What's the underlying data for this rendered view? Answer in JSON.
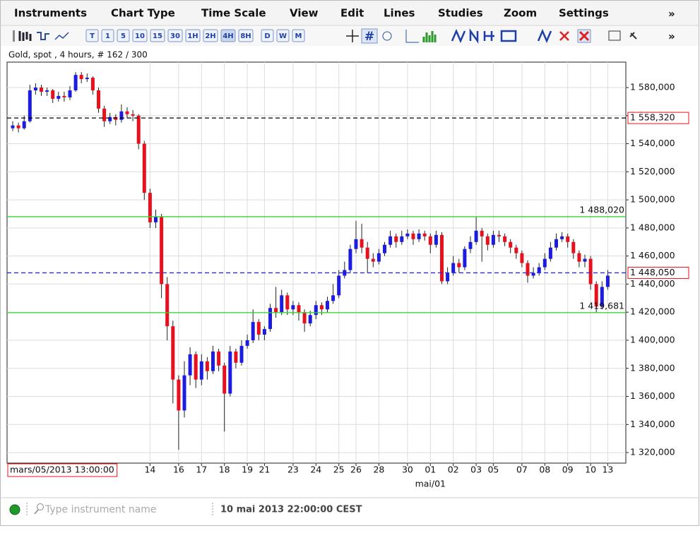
{
  "menu": {
    "items": [
      "Instruments",
      "Chart Type",
      "Time Scale",
      "View",
      "Edit",
      "Lines",
      "Studies",
      "Zoom",
      "Settings"
    ],
    "overflow": "»"
  },
  "toolbar": {
    "periods": [
      "T",
      "1",
      "5",
      "10",
      "15",
      "30",
      "1H",
      "2H",
      "4H",
      "8H",
      "D",
      "W",
      "M"
    ],
    "overflow": "»"
  },
  "chart_data": {
    "type": "candlestick",
    "title": "Gold, spot , 4 hours, # 162 / 300",
    "categories": [
      "mars/05/2013 13:00:00",
      null,
      null,
      null,
      null,
      null,
      null,
      null,
      null,
      null,
      null,
      null,
      null,
      null,
      null,
      null,
      null,
      null,
      null,
      null,
      null,
      null,
      null,
      null,
      "14",
      null,
      null,
      null,
      null,
      "16",
      null,
      null,
      null,
      "17",
      null,
      null,
      null,
      "18",
      null,
      null,
      null,
      "19",
      null,
      null,
      "21",
      null,
      null,
      null,
      null,
      "23",
      null,
      null,
      null,
      "24",
      null,
      null,
      null,
      "25",
      null,
      null,
      "26",
      null,
      null,
      null,
      "28",
      null,
      null,
      null,
      null,
      "30",
      null,
      null,
      null,
      "01",
      null,
      null,
      null,
      "02",
      null,
      null,
      null,
      "03",
      null,
      null,
      "05",
      null,
      null,
      null,
      null,
      "07",
      null,
      null,
      null,
      "08",
      null,
      null,
      null,
      "09",
      null,
      null,
      null,
      "10",
      null,
      null,
      "13"
    ],
    "x_sublabel": "mai/01",
    "candles": [
      [
        1551,
        1556,
        1549,
        1553
      ],
      [
        1553,
        1555,
        1548,
        1551
      ],
      [
        1551,
        1560,
        1550,
        1556
      ],
      [
        1556,
        1582,
        1555,
        1578
      ],
      [
        1578,
        1583,
        1575,
        1580
      ],
      [
        1580,
        1582,
        1574,
        1577
      ],
      [
        1577,
        1580,
        1574,
        1578
      ],
      [
        1578,
        1579,
        1569,
        1572
      ],
      [
        1572,
        1577,
        1570,
        1574
      ],
      [
        1574,
        1577,
        1570,
        1573
      ],
      [
        1573,
        1581,
        1571,
        1578
      ],
      [
        1578,
        1591,
        1577,
        1589
      ],
      [
        1589,
        1591,
        1583,
        1586
      ],
      [
        1586,
        1590,
        1584,
        1587
      ],
      [
        1587,
        1588,
        1575,
        1578
      ],
      [
        1578,
        1580,
        1562,
        1565
      ],
      [
        1565,
        1567,
        1552,
        1556
      ],
      [
        1556,
        1562,
        1554,
        1559
      ],
      [
        1559,
        1561,
        1553,
        1557
      ],
      [
        1557,
        1568,
        1555,
        1563
      ],
      [
        1563,
        1566,
        1558,
        1561
      ],
      [
        1561,
        1564,
        1556,
        1560
      ],
      [
        1560,
        1561,
        1536,
        1540
      ],
      [
        1540,
        1542,
        1500,
        1505
      ],
      [
        1505,
        1508,
        1480,
        1484
      ],
      [
        1484,
        1493,
        1480,
        1488
      ],
      [
        1488,
        1490,
        1430,
        1440
      ],
      [
        1440,
        1445,
        1400,
        1410
      ],
      [
        1410,
        1414,
        1355,
        1372
      ],
      [
        1372,
        1375,
        1322,
        1350
      ],
      [
        1350,
        1385,
        1345,
        1375
      ],
      [
        1375,
        1395,
        1368,
        1390
      ],
      [
        1390,
        1392,
        1366,
        1372
      ],
      [
        1372,
        1390,
        1368,
        1385
      ],
      [
        1385,
        1388,
        1372,
        1378
      ],
      [
        1378,
        1396,
        1376,
        1392
      ],
      [
        1392,
        1394,
        1378,
        1382
      ],
      [
        1382,
        1384,
        1335,
        1362
      ],
      [
        1362,
        1396,
        1360,
        1392
      ],
      [
        1392,
        1394,
        1380,
        1384
      ],
      [
        1384,
        1400,
        1382,
        1396
      ],
      [
        1396,
        1404,
        1394,
        1400
      ],
      [
        1400,
        1422,
        1398,
        1413
      ],
      [
        1413,
        1415,
        1400,
        1404
      ],
      [
        1404,
        1410,
        1400,
        1408
      ],
      [
        1408,
        1426,
        1406,
        1423
      ],
      [
        1423,
        1438,
        1416,
        1420
      ],
      [
        1420,
        1436,
        1418,
        1432
      ],
      [
        1432,
        1434,
        1418,
        1422
      ],
      [
        1422,
        1428,
        1418,
        1425
      ],
      [
        1425,
        1427,
        1414,
        1420
      ],
      [
        1420,
        1422,
        1406,
        1412
      ],
      [
        1412,
        1421,
        1410,
        1418
      ],
      [
        1418,
        1428,
        1415,
        1425
      ],
      [
        1425,
        1427,
        1418,
        1422
      ],
      [
        1422,
        1431,
        1420,
        1428
      ],
      [
        1428,
        1440,
        1426,
        1432
      ],
      [
        1432,
        1450,
        1430,
        1446
      ],
      [
        1446,
        1456,
        1444,
        1450
      ],
      [
        1450,
        1468,
        1448,
        1465
      ],
      [
        1465,
        1485,
        1462,
        1472
      ],
      [
        1472,
        1483,
        1462,
        1466
      ],
      [
        1466,
        1470,
        1448,
        1458
      ],
      [
        1458,
        1462,
        1452,
        1456
      ],
      [
        1456,
        1465,
        1454,
        1462
      ],
      [
        1462,
        1470,
        1460,
        1468
      ],
      [
        1468,
        1478,
        1466,
        1474
      ],
      [
        1474,
        1476,
        1466,
        1470
      ],
      [
        1470,
        1478,
        1468,
        1474
      ],
      [
        1474,
        1479,
        1472,
        1476
      ],
      [
        1476,
        1478,
        1468,
        1472
      ],
      [
        1472,
        1479,
        1470,
        1476
      ],
      [
        1476,
        1478,
        1471,
        1474
      ],
      [
        1474,
        1476,
        1462,
        1468
      ],
      [
        1468,
        1478,
        1466,
        1475
      ],
      [
        1475,
        1477,
        1440,
        1442
      ],
      [
        1442,
        1452,
        1440,
        1448
      ],
      [
        1448,
        1460,
        1446,
        1455
      ],
      [
        1455,
        1458,
        1448,
        1452
      ],
      [
        1452,
        1467,
        1450,
        1465
      ],
      [
        1465,
        1474,
        1462,
        1470
      ],
      [
        1470,
        1488,
        1468,
        1478
      ],
      [
        1478,
        1480,
        1456,
        1474
      ],
      [
        1474,
        1476,
        1464,
        1468
      ],
      [
        1468,
        1478,
        1466,
        1475
      ],
      [
        1475,
        1478,
        1470,
        1474
      ],
      [
        1474,
        1476,
        1467,
        1470
      ],
      [
        1470,
        1472,
        1462,
        1466
      ],
      [
        1466,
        1468,
        1458,
        1462
      ],
      [
        1462,
        1464,
        1452,
        1455
      ],
      [
        1455,
        1457,
        1441,
        1446
      ],
      [
        1446,
        1452,
        1444,
        1448
      ],
      [
        1448,
        1455,
        1446,
        1452
      ],
      [
        1452,
        1462,
        1450,
        1458
      ],
      [
        1458,
        1470,
        1456,
        1466
      ],
      [
        1466,
        1476,
        1464,
        1472
      ],
      [
        1472,
        1477,
        1470,
        1474
      ],
      [
        1474,
        1476,
        1466,
        1470
      ],
      [
        1470,
        1472,
        1458,
        1462
      ],
      [
        1462,
        1464,
        1452,
        1456
      ],
      [
        1456,
        1461,
        1452,
        1458
      ],
      [
        1458,
        1460,
        1436,
        1440
      ],
      [
        1440,
        1442,
        1420,
        1424
      ],
      [
        1424,
        1442,
        1422,
        1438
      ],
      [
        1438,
        1450,
        1436,
        1446
      ]
    ],
    "up_color": "#1c1ce0",
    "down_color": "#e8101c",
    "ylim": [
      1312.5,
      1598.1
    ],
    "yticks": [
      {
        "value": 1320,
        "label": "1 320,000"
      },
      {
        "value": 1340,
        "label": "1 340,000"
      },
      {
        "value": 1360,
        "label": "1 360,000"
      },
      {
        "value": 1380,
        "label": "1 380,000"
      },
      {
        "value": 1400,
        "label": "1 400,000"
      },
      {
        "value": 1420,
        "label": "1 420,000"
      },
      {
        "value": 1440,
        "label": "1 440,000"
      },
      {
        "value": 1460,
        "label": "1 460,000"
      },
      {
        "value": 1480,
        "label": "1 480,000"
      },
      {
        "value": 1500,
        "label": "1 500,000"
      },
      {
        "value": 1520,
        "label": "1 520,000"
      },
      {
        "value": 1540,
        "label": "1 540,000"
      },
      {
        "value": 1560,
        "label": "1 560,000"
      },
      {
        "value": 1580,
        "label": "1 580,000"
      }
    ],
    "grid": true,
    "levels": [
      {
        "value": 1558.32,
        "label": "1 558,320",
        "color": "#000000",
        "style": "dashed",
        "label_position": "axis"
      },
      {
        "value": 1488.02,
        "label": "1 488,020",
        "color": "#2ed82e",
        "style": "solid",
        "label_position": "plot"
      },
      {
        "value": 1448.05,
        "label": "1 448,050",
        "color": "#2a2ae8",
        "style": "dashed",
        "label_position": "axis"
      },
      {
        "value": 1419.681,
        "label": "1 419,681",
        "color": "#2ed82e",
        "style": "solid",
        "label_position": "plot"
      }
    ]
  },
  "status": {
    "search_placeholder": "Type instrument name",
    "time": "10 mai 2013 22:00:00 CEST"
  }
}
